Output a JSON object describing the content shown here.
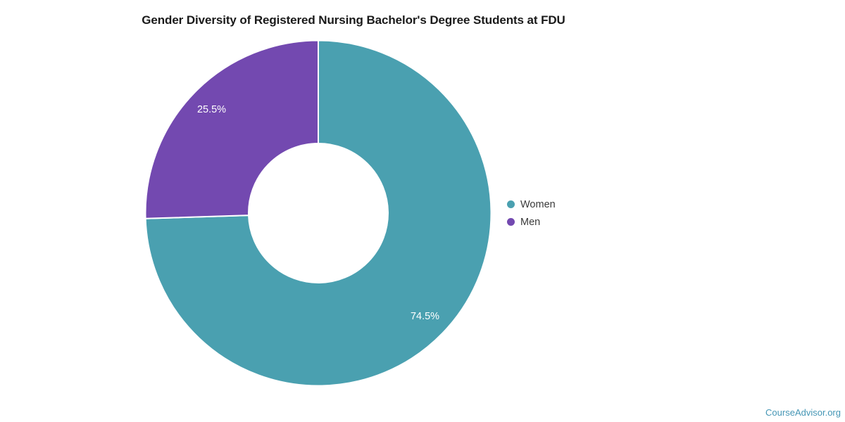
{
  "title": "Gender Diversity of Registered Nursing Bachelor's Degree Students at FDU",
  "attribution": "CourseAdvisor.org",
  "colors": {
    "background": "#ffffff",
    "title_text": "#1a1a1a",
    "legend_text": "#3a3a3a",
    "attribution_text": "#4596b5",
    "slice_separator": "#ffffff",
    "slice_label_text": "#ffffff",
    "women_teal": "#4AA0B0",
    "men_purple": "#7349B0"
  },
  "chart_data": {
    "type": "pie",
    "subtype": "donut",
    "title": "Gender Diversity of Registered Nursing Bachelor's Degree Students at FDU",
    "start_angle_deg": 0,
    "direction": "clockwise",
    "hole_ratio": 0.4,
    "slices": [
      {
        "label": "Women",
        "value": 74.5,
        "display": "74.5%",
        "color": "#4AA0B0"
      },
      {
        "label": "Men",
        "value": 25.5,
        "display": "25.5%",
        "color": "#7349B0"
      }
    ],
    "legend": {
      "position": "right",
      "items": [
        "Women",
        "Men"
      ]
    }
  }
}
